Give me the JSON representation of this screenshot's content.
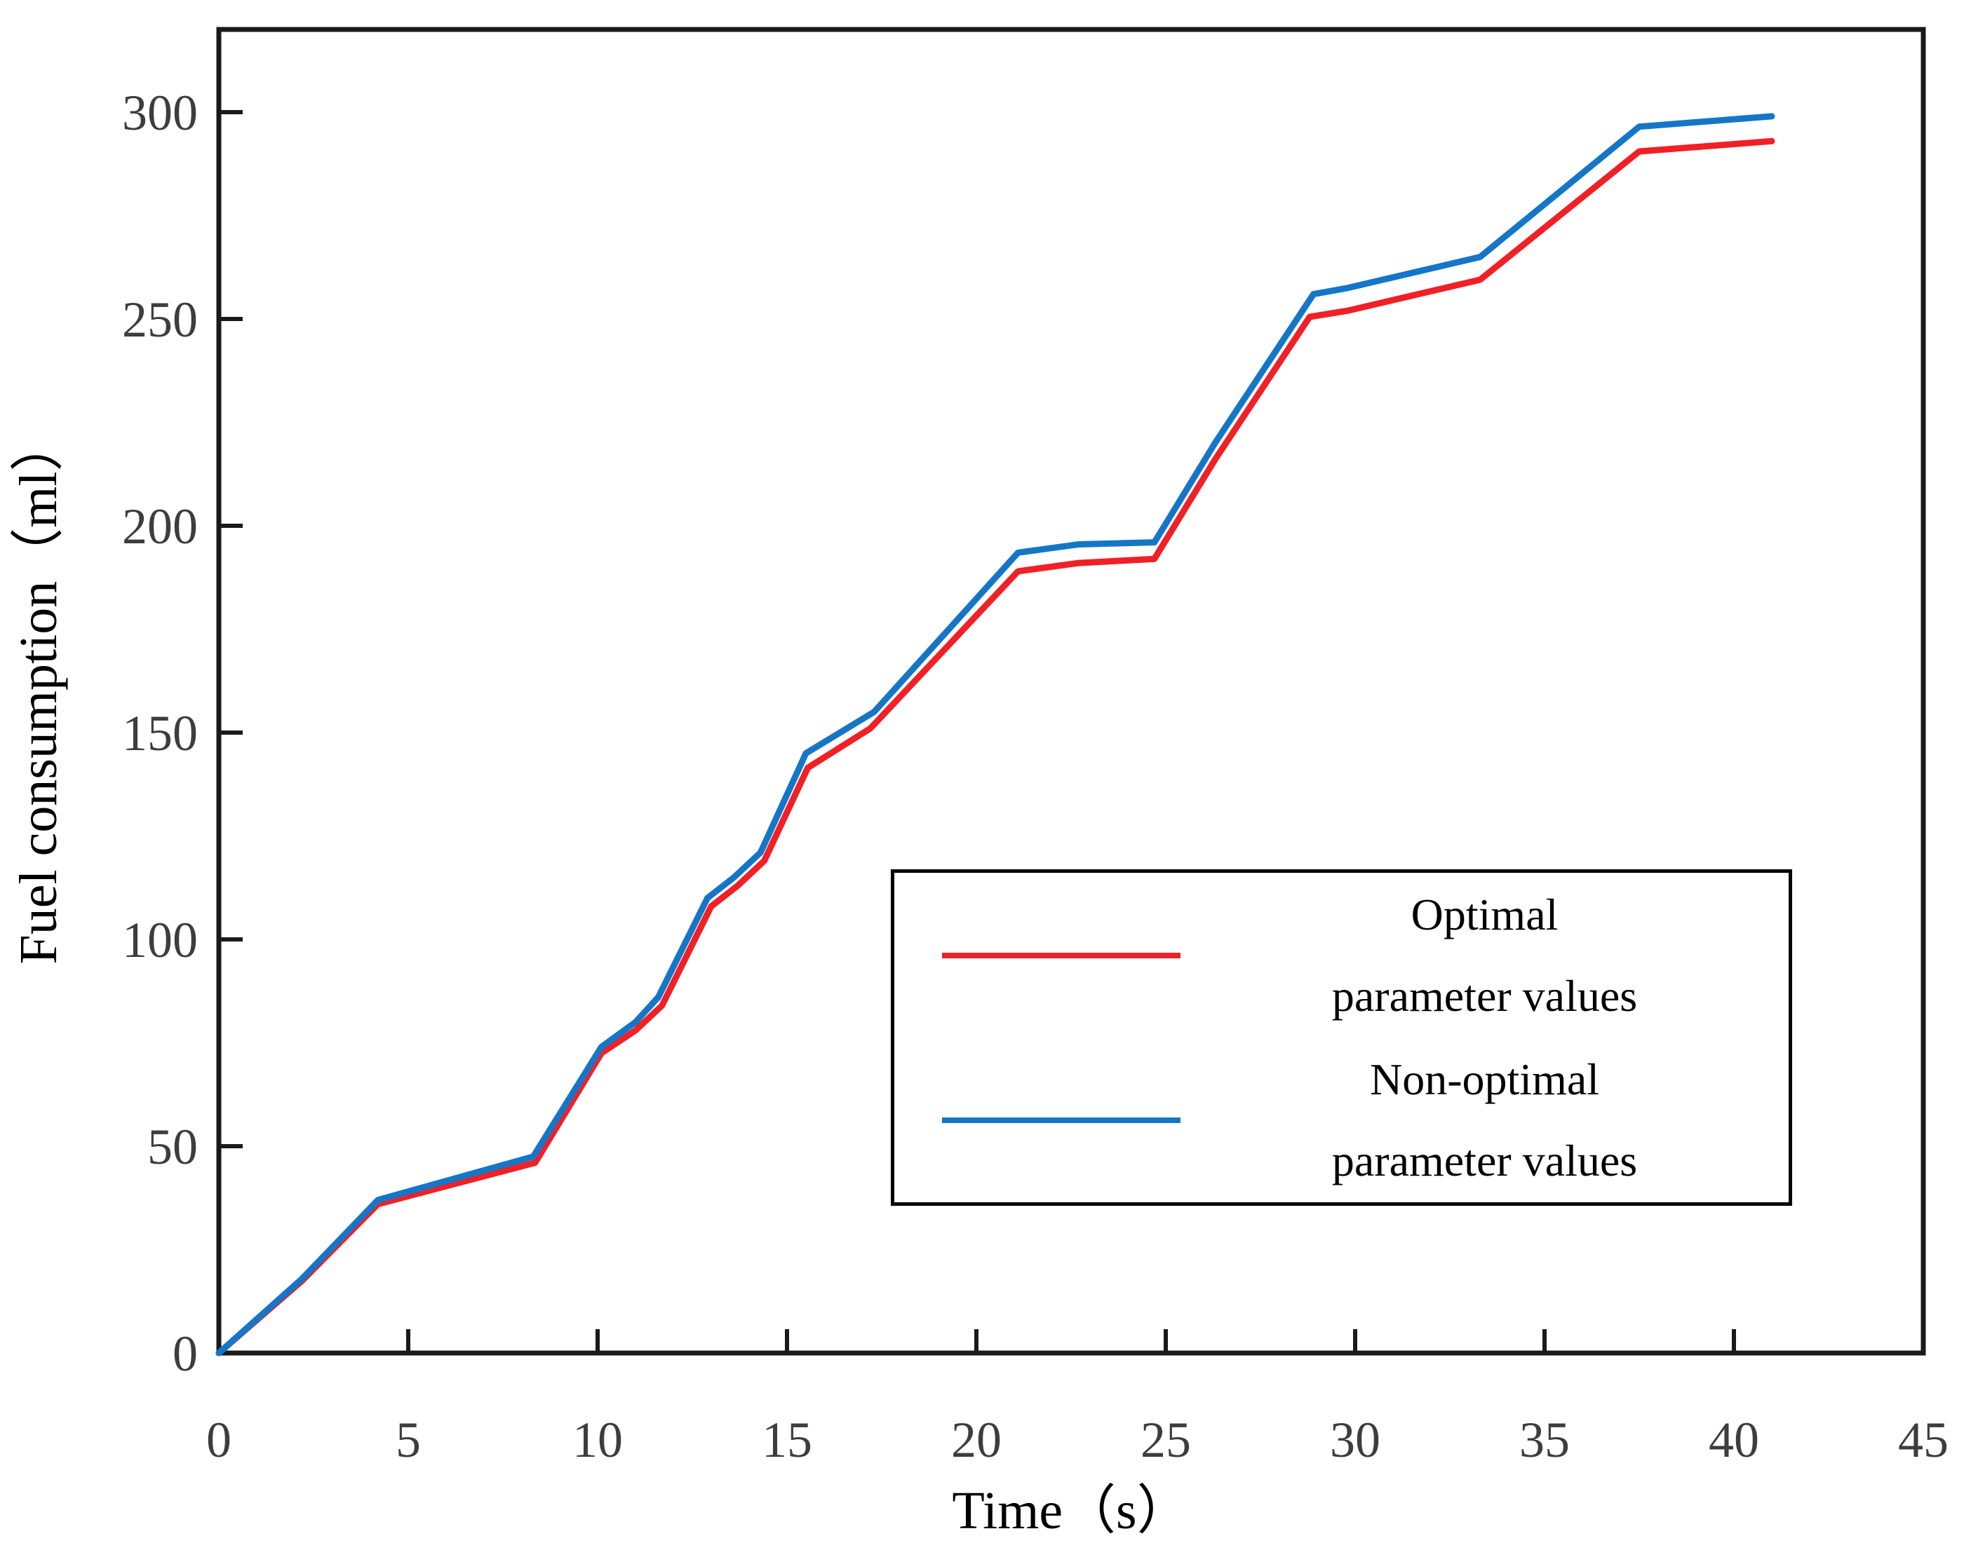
{
  "figure": {
    "background": "#ffffff",
    "axis_color": "#1a1a1a",
    "tick_label_color": "#3d3d3d"
  },
  "legend": {
    "entries": [
      {
        "icon": "red-line-sample",
        "color": "#f02026",
        "lines": [
          "Optimal",
          "parameter values"
        ]
      },
      {
        "icon": "blue-line-sample",
        "color": "#1576c8",
        "lines": [
          "Non-optimal",
          "parameter values"
        ]
      }
    ]
  },
  "chart_data": {
    "type": "line",
    "title": "",
    "xlabel": "Time（s）",
    "ylabel": "Fuel consumption（ml）",
    "xlim": [
      0,
      45
    ],
    "ylim": [
      0,
      320
    ],
    "xticks": [
      0,
      5,
      10,
      15,
      20,
      25,
      30,
      35,
      40,
      45
    ],
    "yticks": [
      0,
      50,
      100,
      150,
      200,
      250,
      300
    ],
    "grid": false,
    "legend_position": "inside-right-middle-box",
    "series": [
      {
        "name": "Optimal parameter values",
        "color": "#f02026",
        "points": [
          [
            0,
            0
          ],
          [
            2.2,
            17.5
          ],
          [
            4.2,
            36
          ],
          [
            8.35,
            46
          ],
          [
            10.1,
            72.5
          ],
          [
            11,
            78
          ],
          [
            11.7,
            84
          ],
          [
            13,
            108
          ],
          [
            13.7,
            113
          ],
          [
            14.4,
            119
          ],
          [
            15.55,
            141.5
          ],
          [
            17.2,
            151
          ],
          [
            21.1,
            189
          ],
          [
            22.7,
            191
          ],
          [
            24.7,
            192
          ],
          [
            26.3,
            216
          ],
          [
            28.8,
            250.5
          ],
          [
            29.8,
            252
          ],
          [
            33.3,
            259.5
          ],
          [
            37.5,
            290.5
          ],
          [
            41,
            293
          ]
        ]
      },
      {
        "name": "Non-optimal parameter values",
        "color": "#1576c8",
        "points": [
          [
            0,
            0
          ],
          [
            2.2,
            18
          ],
          [
            4.2,
            37
          ],
          [
            8.3,
            47.5
          ],
          [
            10.1,
            74
          ],
          [
            11,
            80
          ],
          [
            11.6,
            86
          ],
          [
            12.9,
            110
          ],
          [
            13.6,
            115
          ],
          [
            14.3,
            121
          ],
          [
            15.5,
            145
          ],
          [
            17.3,
            155
          ],
          [
            21.1,
            193.5
          ],
          [
            22.7,
            195.5
          ],
          [
            24.7,
            196
          ],
          [
            26.3,
            220
          ],
          [
            28.9,
            256
          ],
          [
            29.8,
            257.5
          ],
          [
            33.3,
            265
          ],
          [
            37.5,
            296.5
          ],
          [
            41,
            299
          ]
        ]
      }
    ]
  }
}
